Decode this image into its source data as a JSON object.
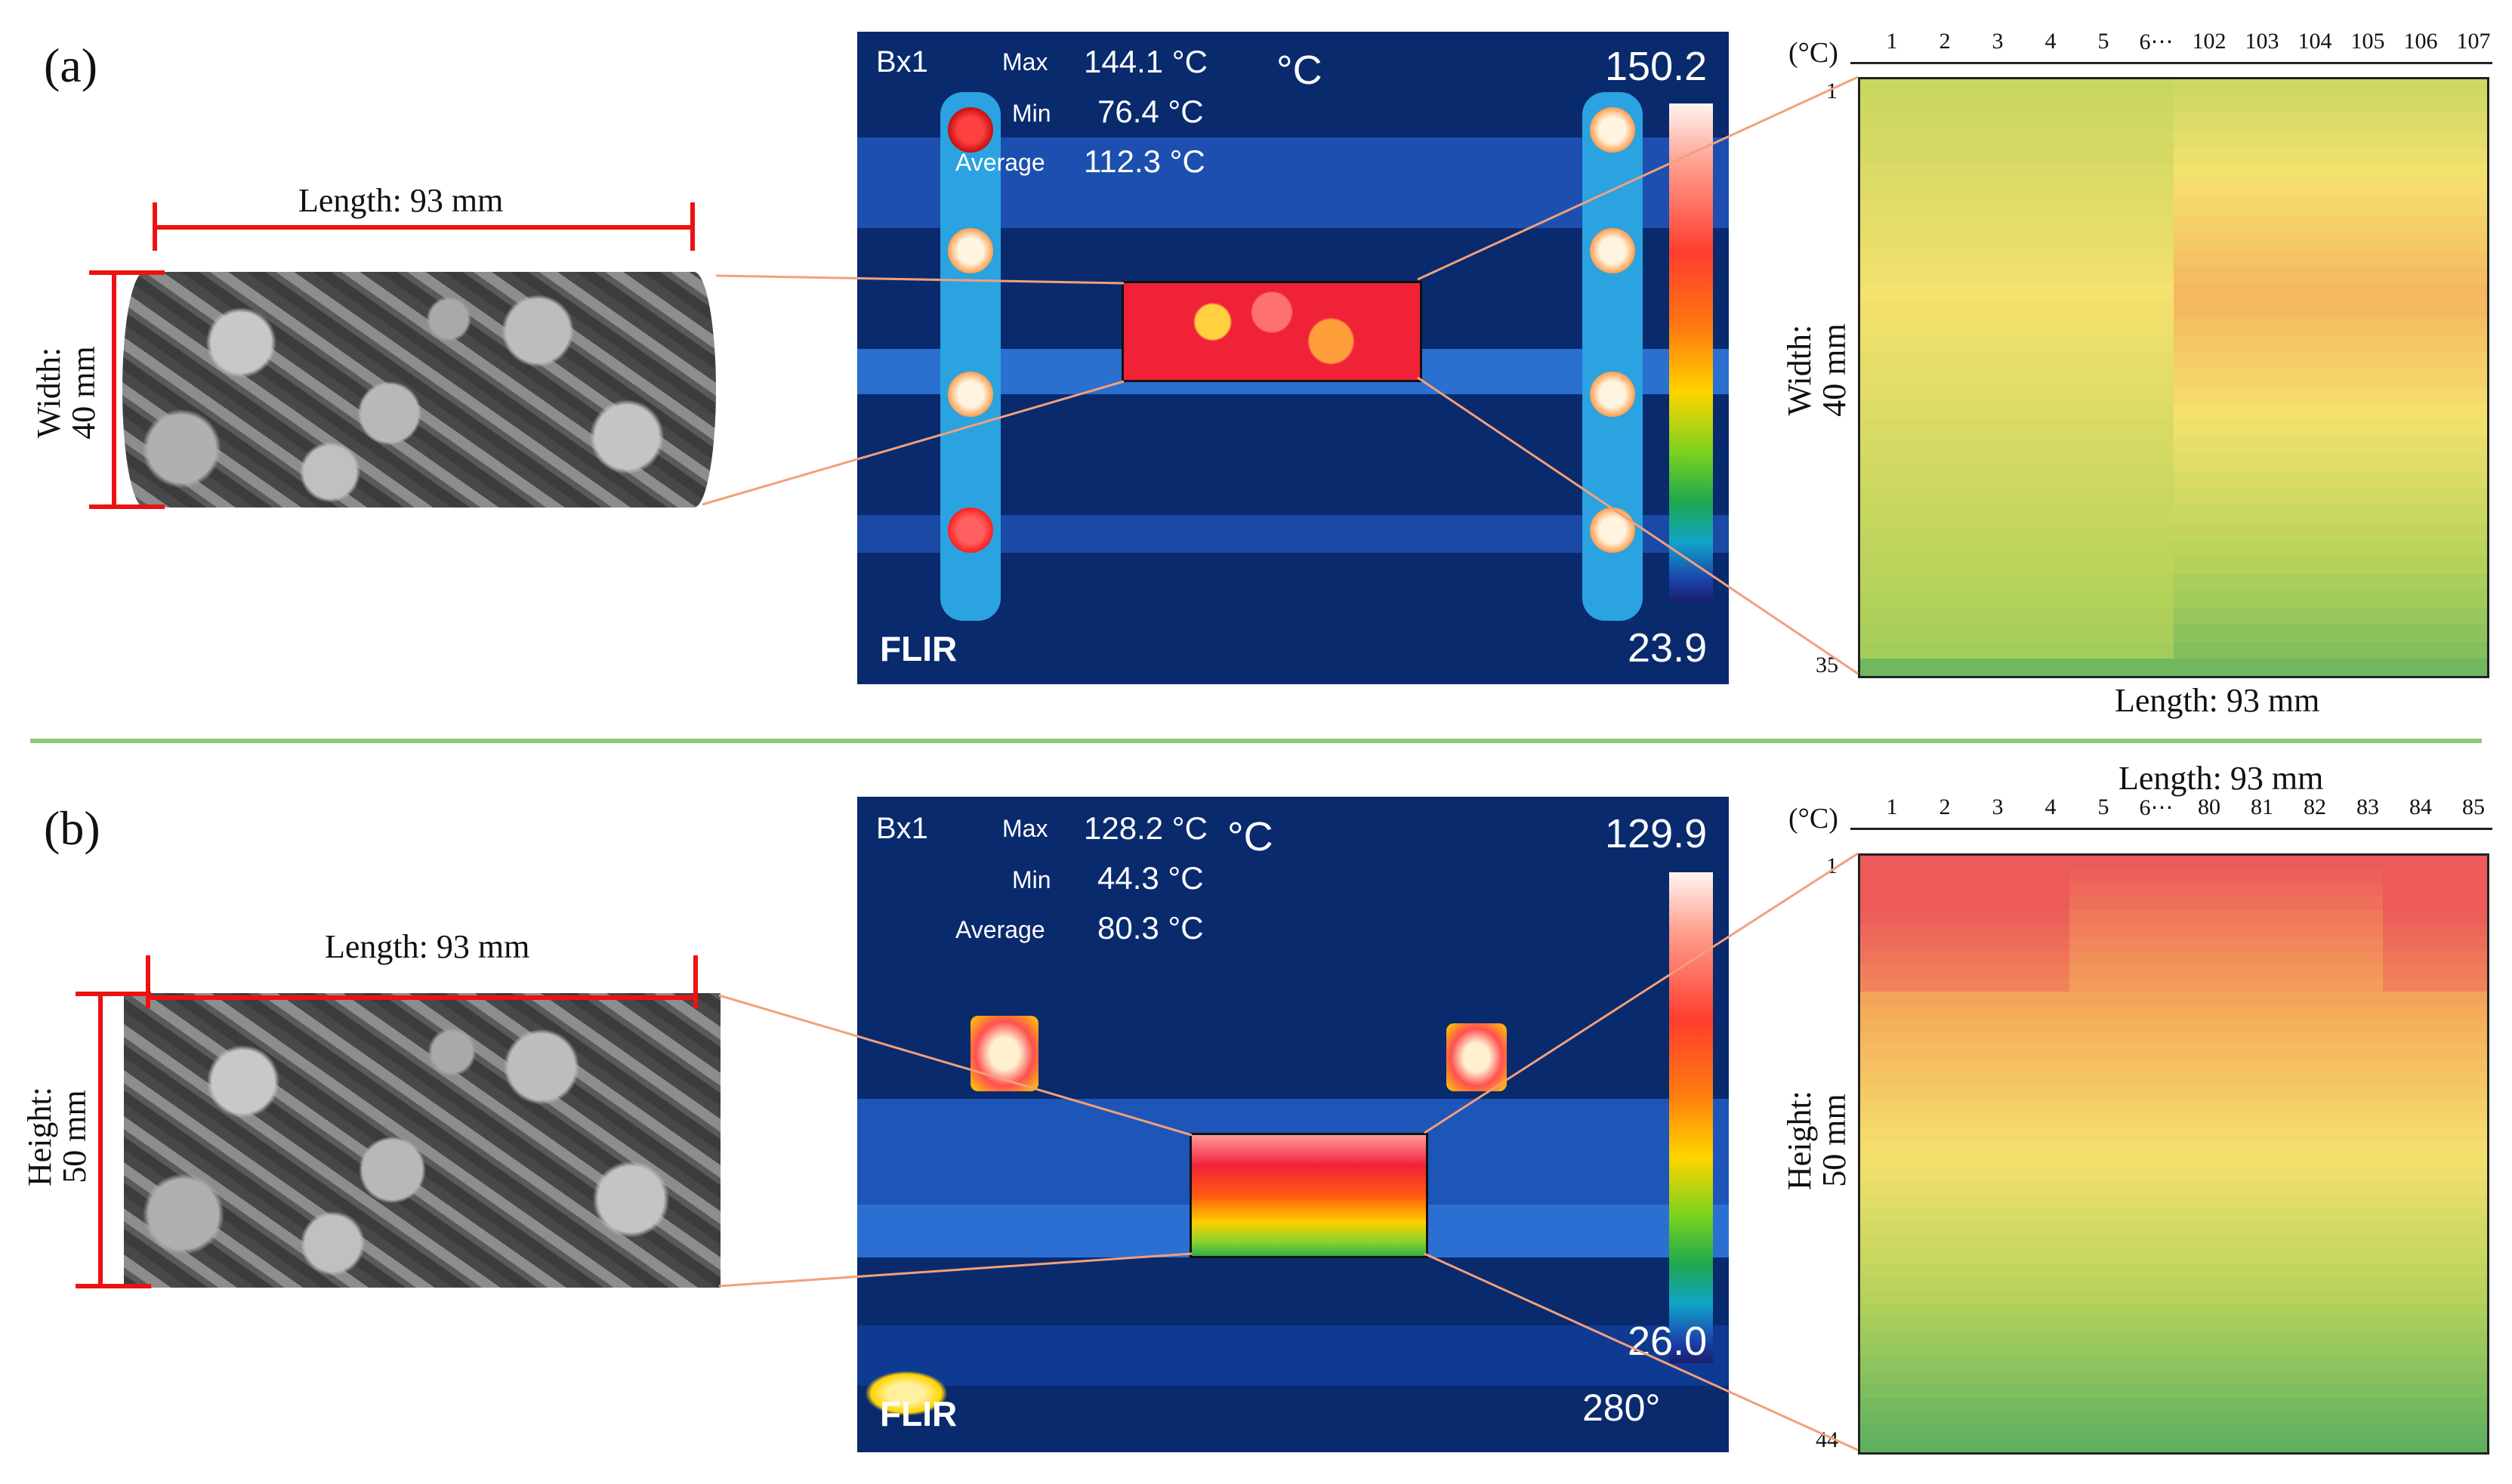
{
  "panel_a": {
    "label": "(a)",
    "sample_length": "Length: 93 mm",
    "sample_width": "Width:\n40 mm",
    "thermal": {
      "box": "Bx1",
      "max_label": "Max",
      "max_value": "144.1 °C",
      "min_label": "Min",
      "min_value": "76.4 °C",
      "avg_label": "Average",
      "avg_value": "112.3 °C",
      "unit": "°C",
      "scale_max": "150.2",
      "scale_min": "23.9",
      "brand": "FLIR"
    },
    "matrix": {
      "unit": "(°C)",
      "col_labels": [
        "1",
        "2",
        "3",
        "4",
        "5",
        "6⋯",
        "102",
        "103",
        "104",
        "105",
        "106",
        "107"
      ],
      "row_start": "1",
      "row_end": "35",
      "width_label": "Width:\n40 mm",
      "length_label": "Length: 93 mm",
      "rows": 35,
      "cols": 12
    }
  },
  "panel_b": {
    "label": "(b)",
    "sample_length": "Length: 93 mm",
    "sample_height": "Height:\n50 mm",
    "thermal": {
      "box": "Bx1",
      "max_label": "Max",
      "max_value": "128.2 °C",
      "min_label": "Min",
      "min_value": "44.3 °C",
      "avg_label": "Average",
      "avg_value": "80.3 °C",
      "unit": "°C",
      "scale_max": "129.9",
      "scale_min": "26.0",
      "brand": "FLIR",
      "overlay": "280°"
    },
    "matrix": {
      "unit": "(°C)",
      "col_labels": [
        "1",
        "2",
        "3",
        "4",
        "5",
        "6⋯",
        "80",
        "81",
        "82",
        "83",
        "84",
        "85"
      ],
      "row_start": "1",
      "row_end": "44",
      "height_label": "Height:\n50 mm",
      "length_label": "Length: 93 mm",
      "rows": 44,
      "cols": 12
    }
  }
}
